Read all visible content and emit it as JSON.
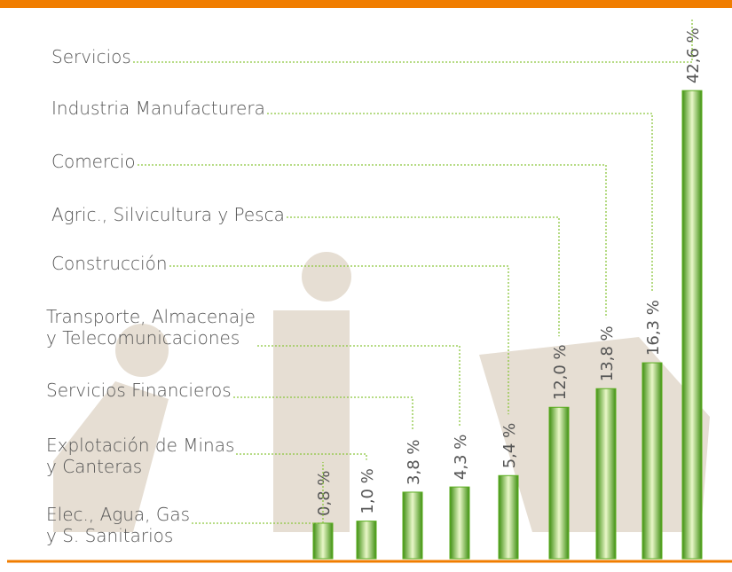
{
  "chart_data": {
    "type": "bar",
    "categories": [
      "Elec., Agua, Gas\ny S. Sanitarios",
      "Explotación de Minas\ny Canteras",
      "Servicios Financieros",
      "Transporte, Almacenaje\ny Telecomunicaciones",
      "Construcción",
      "Agric., Silvicultura y Pesca",
      "Comercio",
      "Industria Manufacturera",
      "Servicios"
    ],
    "values": [
      0.8,
      1.0,
      3.8,
      4.3,
      5.4,
      12.0,
      13.8,
      16.3,
      42.6
    ],
    "value_labels": [
      "0,8 %",
      "1,0 %",
      "3,8 %",
      "4,3 %",
      "5,4 %",
      "12,0 %",
      "13,8 %",
      "16,3 %",
      "42,6 %"
    ],
    "color": "#5aad1e"
  }
}
